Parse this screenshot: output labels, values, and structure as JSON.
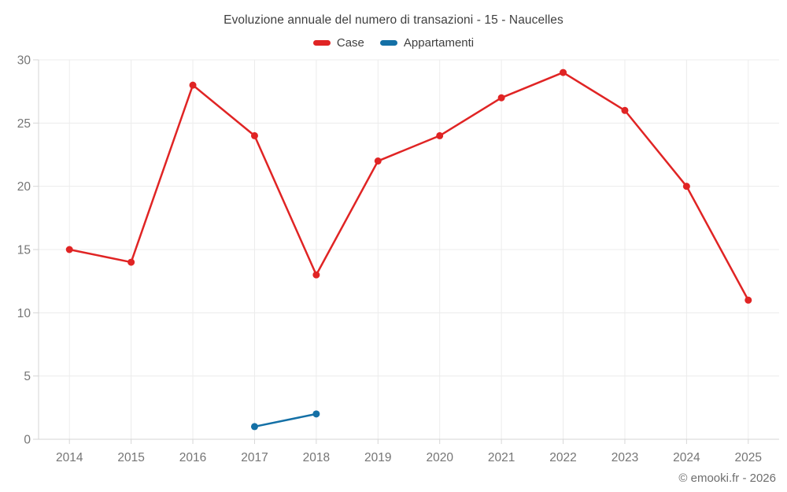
{
  "footer": "© emooki.fr - 2026",
  "chart_data": {
    "type": "line",
    "title": "Evoluzione annuale del numero di transazioni - 15 - Naucelles",
    "categories": [
      "2014",
      "2015",
      "2016",
      "2017",
      "2018",
      "2019",
      "2020",
      "2021",
      "2022",
      "2023",
      "2024",
      "2025"
    ],
    "series": [
      {
        "name": "Case",
        "color": "#e02424",
        "values": [
          15,
          14,
          28,
          24,
          13,
          22,
          24,
          27,
          29,
          26,
          20,
          11
        ]
      },
      {
        "name": "Appartamenti",
        "color": "#1470a6",
        "values": [
          null,
          null,
          null,
          1,
          2,
          null,
          null,
          null,
          null,
          null,
          null,
          null
        ]
      }
    ],
    "ylim": [
      0,
      30
    ],
    "yticks": [
      0,
      5,
      10,
      15,
      20,
      25,
      30
    ],
    "xlabel": "",
    "ylabel": "",
    "grid": true,
    "legend_position": "top",
    "grid_color": "#ececec",
    "axis_color": "#d6d6d6"
  }
}
